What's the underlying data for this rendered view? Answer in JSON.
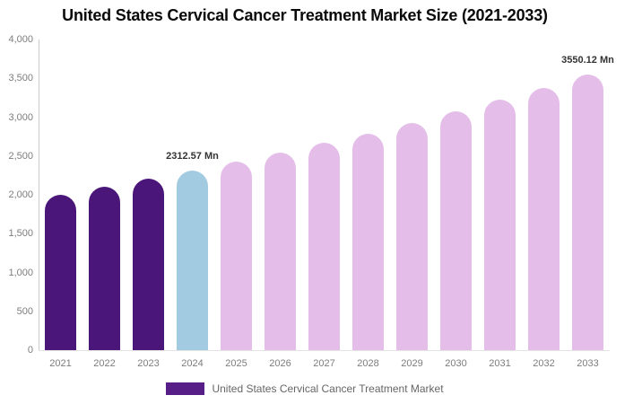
{
  "header": {
    "title": "United States Cervical Cancer Treatment Market Size (2021-2033)"
  },
  "colors": {
    "historical": "#4B1679",
    "base": "#A2CAE0",
    "forecast": "#E4BEE9",
    "legend_swatch": "#561E86",
    "axis_line": "#cccccc",
    "tick_text": "#7d7d7d"
  },
  "y_axis": {
    "tick_labels": [
      "4,000",
      "3,500",
      "3,000",
      "2,500",
      "2,000",
      "1,500",
      "1,000",
      "500",
      "0"
    ]
  },
  "legend": {
    "label": "United States Cervical Cancer Treatment Market"
  },
  "chart_data": {
    "type": "bar",
    "title": "United States Cervical Cancer Treatment Market Size (2021-2033)",
    "unit": "Mn",
    "categories": [
      "2021",
      "2022",
      "2023",
      "2024",
      "2025",
      "2026",
      "2027",
      "2028",
      "2029",
      "2030",
      "2031",
      "2032",
      "2033"
    ],
    "values": [
      2005,
      2103,
      2205,
      2312.57,
      2425,
      2543,
      2667,
      2790,
      2928,
      3070,
      3220,
      3380,
      3550.12
    ],
    "segments": [
      "historical",
      "historical",
      "historical",
      "base",
      "forecast",
      "forecast",
      "forecast",
      "forecast",
      "forecast",
      "forecast",
      "forecast",
      "forecast",
      "forecast"
    ],
    "annotations": [
      {
        "category": "2024",
        "text": "2312.57 Mn"
      },
      {
        "category": "2033",
        "text": "3550.12 Mn"
      }
    ],
    "xlabel": "",
    "ylabel": "",
    "ylim": [
      0,
      4000
    ],
    "ytick_step": 500,
    "grid": false,
    "legend_position": "bottom",
    "legend_entries": [
      "United States Cervical Cancer Treatment Market"
    ]
  }
}
